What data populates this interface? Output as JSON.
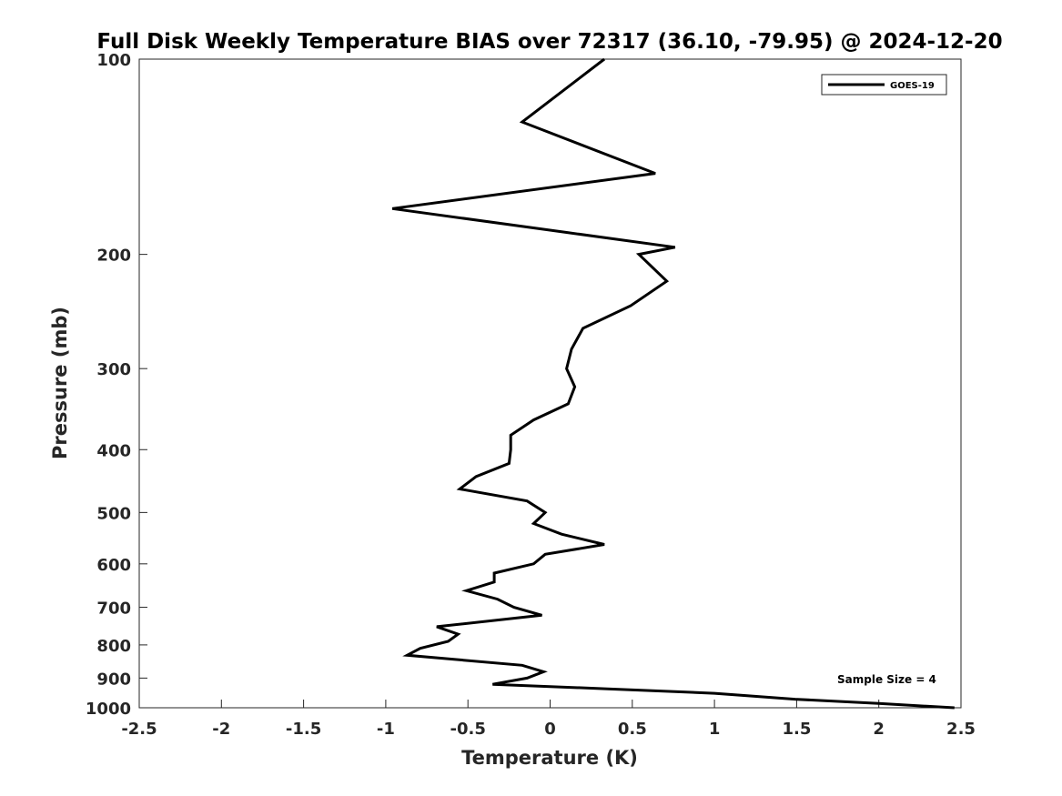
{
  "chart_data": {
    "type": "line",
    "title": "Full Disk Weekly Temperature BIAS over 72317 (36.10, -79.95) @ 2024-12-20",
    "xlabel": "Temperature (K)",
    "ylabel": "Pressure (mb)",
    "xlim": [
      -2.5,
      2.5
    ],
    "ylim": [
      1000,
      100
    ],
    "yscale": "log",
    "y_reversed": true,
    "grid": false,
    "legend_position": "top-right",
    "x_ticks": [
      -2.5,
      -2,
      -1.5,
      -1,
      -0.5,
      0,
      0.5,
      1,
      1.5,
      2,
      2.5
    ],
    "x_tick_labels": [
      "-2.5",
      "-2",
      "-1.5",
      "-1",
      "-0.5",
      "0",
      "0.5",
      "1",
      "1.5",
      "2",
      "2.5"
    ],
    "y_ticks": [
      100,
      200,
      300,
      400,
      500,
      600,
      700,
      800,
      900,
      1000
    ],
    "y_tick_labels": [
      "100",
      "200",
      "300",
      "400",
      "500",
      "600",
      "700",
      "800",
      "900",
      "1000"
    ],
    "annotation": "Sample Size = 4",
    "series": [
      {
        "name": "GOES-19",
        "color": "#000000",
        "points": [
          [
            0.33,
            100
          ],
          [
            -0.17,
            125
          ],
          [
            0.64,
            150
          ],
          [
            -0.96,
            170
          ],
          [
            0.76,
            195
          ],
          [
            0.54,
            200
          ],
          [
            0.71,
            220
          ],
          [
            0.49,
            240
          ],
          [
            0.2,
            260
          ],
          [
            0.13,
            280
          ],
          [
            0.1,
            300
          ],
          [
            0.15,
            320
          ],
          [
            0.11,
            340
          ],
          [
            -0.1,
            360
          ],
          [
            -0.24,
            380
          ],
          [
            -0.24,
            400
          ],
          [
            -0.25,
            420
          ],
          [
            -0.45,
            440
          ],
          [
            -0.55,
            460
          ],
          [
            -0.14,
            480
          ],
          [
            -0.03,
            500
          ],
          [
            -0.1,
            520
          ],
          [
            0.07,
            540
          ],
          [
            0.33,
            560
          ],
          [
            -0.03,
            580
          ],
          [
            -0.1,
            600
          ],
          [
            -0.34,
            620
          ],
          [
            -0.34,
            640
          ],
          [
            -0.51,
            660
          ],
          [
            -0.32,
            680
          ],
          [
            -0.22,
            700
          ],
          [
            -0.05,
            720
          ],
          [
            -0.69,
            750
          ],
          [
            -0.56,
            770
          ],
          [
            -0.62,
            790
          ],
          [
            -0.79,
            810
          ],
          [
            -0.87,
            830
          ],
          [
            -0.17,
            860
          ],
          [
            -0.04,
            880
          ],
          [
            -0.14,
            900
          ],
          [
            -0.35,
            920
          ],
          [
            0.35,
            935
          ],
          [
            1.0,
            950
          ],
          [
            1.49,
            970
          ],
          [
            2.0,
            985
          ],
          [
            2.46,
            1000
          ]
        ]
      }
    ]
  }
}
